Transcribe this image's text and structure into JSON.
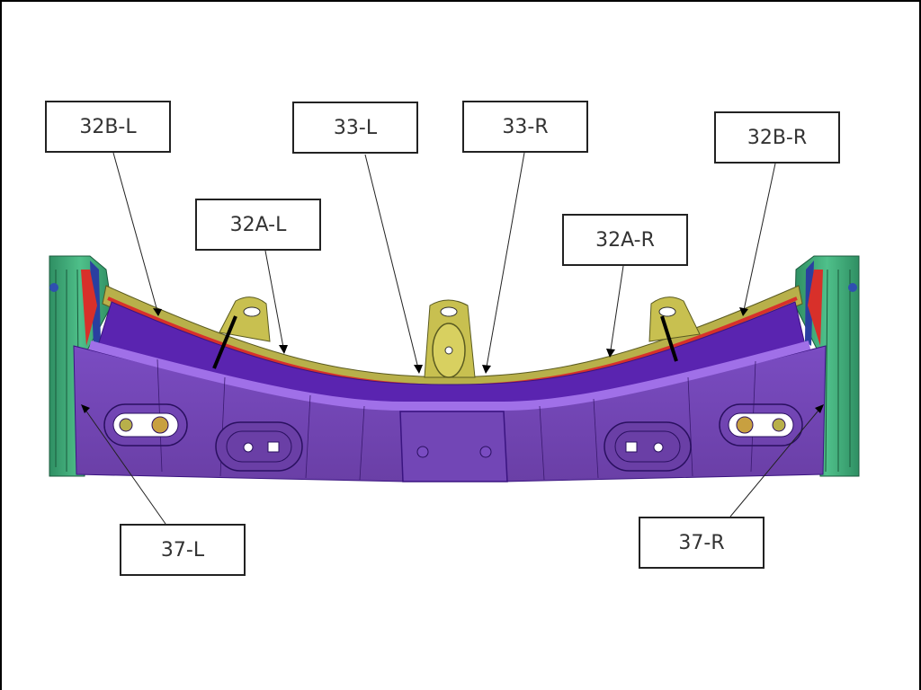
{
  "labels": {
    "b32l": "32B-L",
    "l33": "33-L",
    "r33": "33-R",
    "b32r": "32B-R",
    "a32l": "32A-L",
    "a32r": "32A-R",
    "l37": "37-L",
    "r37": "37-R"
  },
  "colors": {
    "panel_purple": "#6a3fa6",
    "flange_violet": "#5a24b0",
    "rib_violet": "#9a66e6",
    "bracket_olive": "#b8b04a",
    "seal_red": "#d8302a",
    "side_green": "#3fae7c",
    "line": "#000000"
  },
  "icons": [
    "leader-arrow-icon"
  ]
}
